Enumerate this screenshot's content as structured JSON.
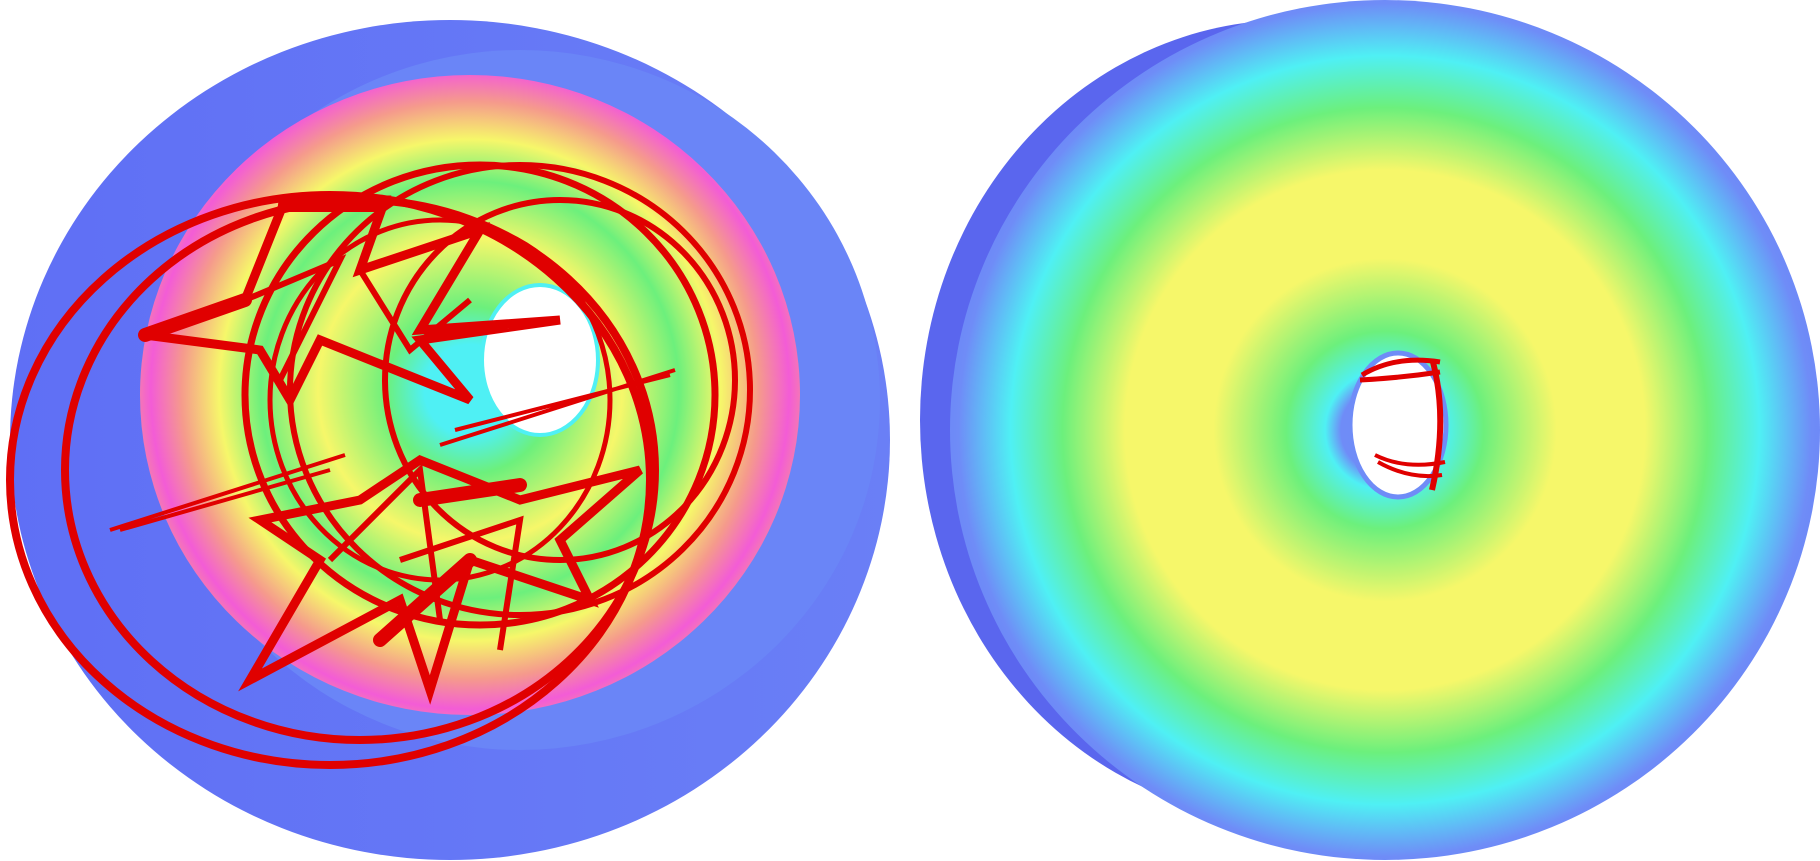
{
  "figure": {
    "panels": [
      {
        "id": "left",
        "view": "cutaway",
        "shows_coils": true
      },
      {
        "id": "right",
        "view": "exterior",
        "shows_coils": true
      }
    ],
    "colors": {
      "background": "#ffffff",
      "shell_blue": "#5f6ff5",
      "shell_blue_light": "#6f8cf7",
      "cyan": "#4ff0f4",
      "green": "#6cf07c",
      "yellow": "#f6f76a",
      "salmon": "#f59a8c",
      "magenta": "#f35cd6",
      "coil_red": "#e00000"
    }
  }
}
